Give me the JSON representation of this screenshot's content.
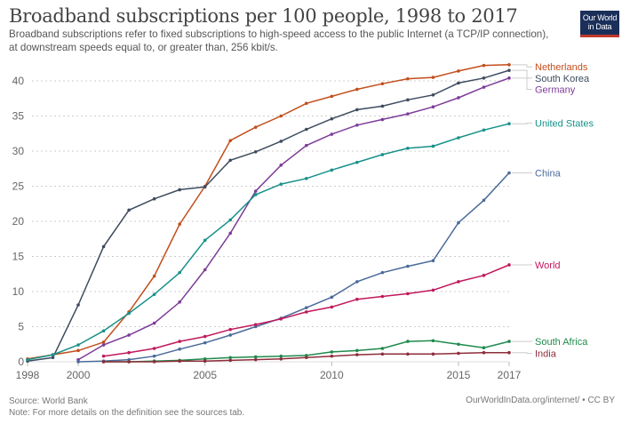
{
  "header": {
    "title": "Broadband subscriptions per 100 people, 1998 to 2017",
    "subtitle": "Broadband subscriptions refer to fixed subscriptions to high-speed access to the public Internet (a TCP/IP connection), at downstream speeds equal to, or greater than, 256 kbit/s.",
    "logo_line1": "Our World",
    "logo_line2": "in Data"
  },
  "footer": {
    "source": "Source: World Bank",
    "note": "Note: For more details on the definition see the sources tab.",
    "credit": "OurWorldInData.org/internet/ • CC BY"
  },
  "chart_data": {
    "type": "line",
    "title": "Broadband subscriptions per 100 people, 1998 to 2017",
    "xlabel": "",
    "ylabel": "",
    "xlim": [
      1998,
      2017
    ],
    "ylim": [
      0,
      42
    ],
    "grid": true,
    "legend": "right (end labels)",
    "x_ticks": [
      1998,
      2000,
      2005,
      2010,
      2015,
      2017
    ],
    "y_ticks": [
      0,
      5,
      10,
      15,
      20,
      25,
      30,
      35,
      40
    ],
    "series": [
      {
        "name": "Netherlands",
        "color": "#c24e1c",
        "x": [
          1998,
          1999,
          2000,
          2001,
          2002,
          2003,
          2004,
          2005,
          2006,
          2007,
          2008,
          2009,
          2010,
          2011,
          2012,
          2013,
          2014,
          2015,
          2016,
          2017
        ],
        "values": [
          0.4,
          1.0,
          1.6,
          2.8,
          7.1,
          12.2,
          19.6,
          25.0,
          31.5,
          33.4,
          35.0,
          36.8,
          37.8,
          38.8,
          39.6,
          40.3,
          40.5,
          41.4,
          42.2,
          42.3
        ]
      },
      {
        "name": "South Korea",
        "color": "#3e4c5e",
        "x": [
          1998,
          1999,
          2000,
          2001,
          2002,
          2003,
          2004,
          2005,
          2006,
          2007,
          2008,
          2009,
          2010,
          2011,
          2012,
          2013,
          2014,
          2015,
          2016,
          2017
        ],
        "values": [
          0.1,
          0.6,
          8.1,
          16.4,
          21.6,
          23.2,
          24.5,
          24.9,
          28.7,
          29.9,
          31.4,
          33.1,
          34.6,
          35.9,
          36.4,
          37.3,
          38.0,
          39.7,
          40.4,
          41.5
        ]
      },
      {
        "name": "Germany",
        "color": "#7d3c98",
        "x": [
          2000,
          2001,
          2002,
          2003,
          2004,
          2005,
          2006,
          2007,
          2008,
          2009,
          2010,
          2011,
          2012,
          2013,
          2014,
          2015,
          2016,
          2017
        ],
        "values": [
          0.3,
          2.4,
          3.8,
          5.5,
          8.5,
          13.1,
          18.3,
          24.3,
          28.0,
          30.8,
          32.4,
          33.7,
          34.5,
          35.3,
          36.3,
          37.6,
          39.1,
          40.4
        ]
      },
      {
        "name": "United States",
        "color": "#17918a",
        "x": [
          1998,
          1999,
          2000,
          2001,
          2002,
          2003,
          2004,
          2005,
          2006,
          2007,
          2008,
          2009,
          2010,
          2011,
          2012,
          2013,
          2014,
          2015,
          2016,
          2017
        ],
        "values": [
          0.3,
          1.0,
          2.4,
          4.4,
          6.9,
          9.6,
          12.7,
          17.3,
          20.2,
          23.8,
          25.3,
          26.1,
          27.3,
          28.4,
          29.5,
          30.4,
          30.7,
          31.9,
          33.0,
          33.9
        ]
      },
      {
        "name": "China",
        "color": "#4a6a9a",
        "x": [
          2000,
          2001,
          2002,
          2003,
          2004,
          2005,
          2006,
          2007,
          2008,
          2009,
          2010,
          2011,
          2012,
          2013,
          2014,
          2015,
          2016,
          2017
        ],
        "values": [
          0.0,
          0.1,
          0.3,
          0.8,
          1.8,
          2.7,
          3.8,
          5.0,
          6.2,
          7.7,
          9.2,
          11.4,
          12.7,
          13.6,
          14.4,
          19.8,
          23.0,
          26.9
        ]
      },
      {
        "name": "World",
        "color": "#c2185b",
        "x": [
          2001,
          2002,
          2003,
          2004,
          2005,
          2006,
          2007,
          2008,
          2009,
          2010,
          2011,
          2012,
          2013,
          2014,
          2015,
          2016,
          2017
        ],
        "values": [
          0.8,
          1.3,
          1.9,
          2.9,
          3.6,
          4.6,
          5.3,
          6.1,
          7.1,
          7.8,
          8.9,
          9.3,
          9.7,
          10.2,
          11.4,
          12.3,
          13.8
        ]
      },
      {
        "name": "South Africa",
        "color": "#1e8a4c",
        "x": [
          2001,
          2002,
          2003,
          2004,
          2005,
          2006,
          2007,
          2008,
          2009,
          2010,
          2011,
          2012,
          2013,
          2014,
          2015,
          2016,
          2017
        ],
        "values": [
          0.0,
          0.0,
          0.1,
          0.2,
          0.4,
          0.6,
          0.7,
          0.8,
          0.9,
          1.4,
          1.6,
          1.9,
          2.9,
          3.0,
          2.5,
          2.0,
          2.9
        ]
      },
      {
        "name": "India",
        "color": "#8e2d3a",
        "x": [
          2001,
          2002,
          2003,
          2004,
          2005,
          2006,
          2007,
          2008,
          2009,
          2010,
          2011,
          2012,
          2013,
          2014,
          2015,
          2016,
          2017
        ],
        "values": [
          0.0,
          0.0,
          0.0,
          0.1,
          0.1,
          0.2,
          0.3,
          0.4,
          0.6,
          0.8,
          1.0,
          1.1,
          1.1,
          1.1,
          1.2,
          1.3,
          1.3
        ]
      }
    ],
    "end_labels": [
      {
        "name": "Netherlands",
        "label_y": 42.0
      },
      {
        "name": "South Korea",
        "label_y": 40.4
      },
      {
        "name": "Germany",
        "label_y": 38.8
      },
      {
        "name": "United States",
        "label_y": 34.0
      },
      {
        "name": "China",
        "label_y": 26.9
      },
      {
        "name": "World",
        "label_y": 13.8
      },
      {
        "name": "South Africa",
        "label_y": 2.9
      },
      {
        "name": "India",
        "label_y": 1.2
      }
    ]
  }
}
